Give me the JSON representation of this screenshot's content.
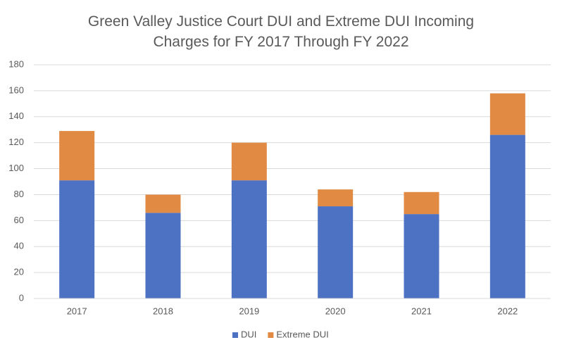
{
  "chart_data": {
    "type": "stacked_bar",
    "title": "Green Valley Justice Court DUI and Extreme DUI Incoming Charges for FY 2017 Through FY 2022",
    "categories": [
      "2017",
      "2018",
      "2019",
      "2020",
      "2021",
      "2022"
    ],
    "series": [
      {
        "name": "DUI",
        "color": "#4e72c3",
        "values": [
          91,
          66,
          91,
          71,
          65,
          126
        ]
      },
      {
        "name": "Extreme DUI",
        "color": "#e08a43",
        "values": [
          38,
          14,
          29,
          13,
          17,
          32
        ]
      }
    ],
    "ylim": [
      0,
      180
    ],
    "yticks": [
      0,
      20,
      40,
      60,
      80,
      100,
      120,
      140,
      160,
      180
    ],
    "grid": true,
    "legend": "bottom"
  }
}
